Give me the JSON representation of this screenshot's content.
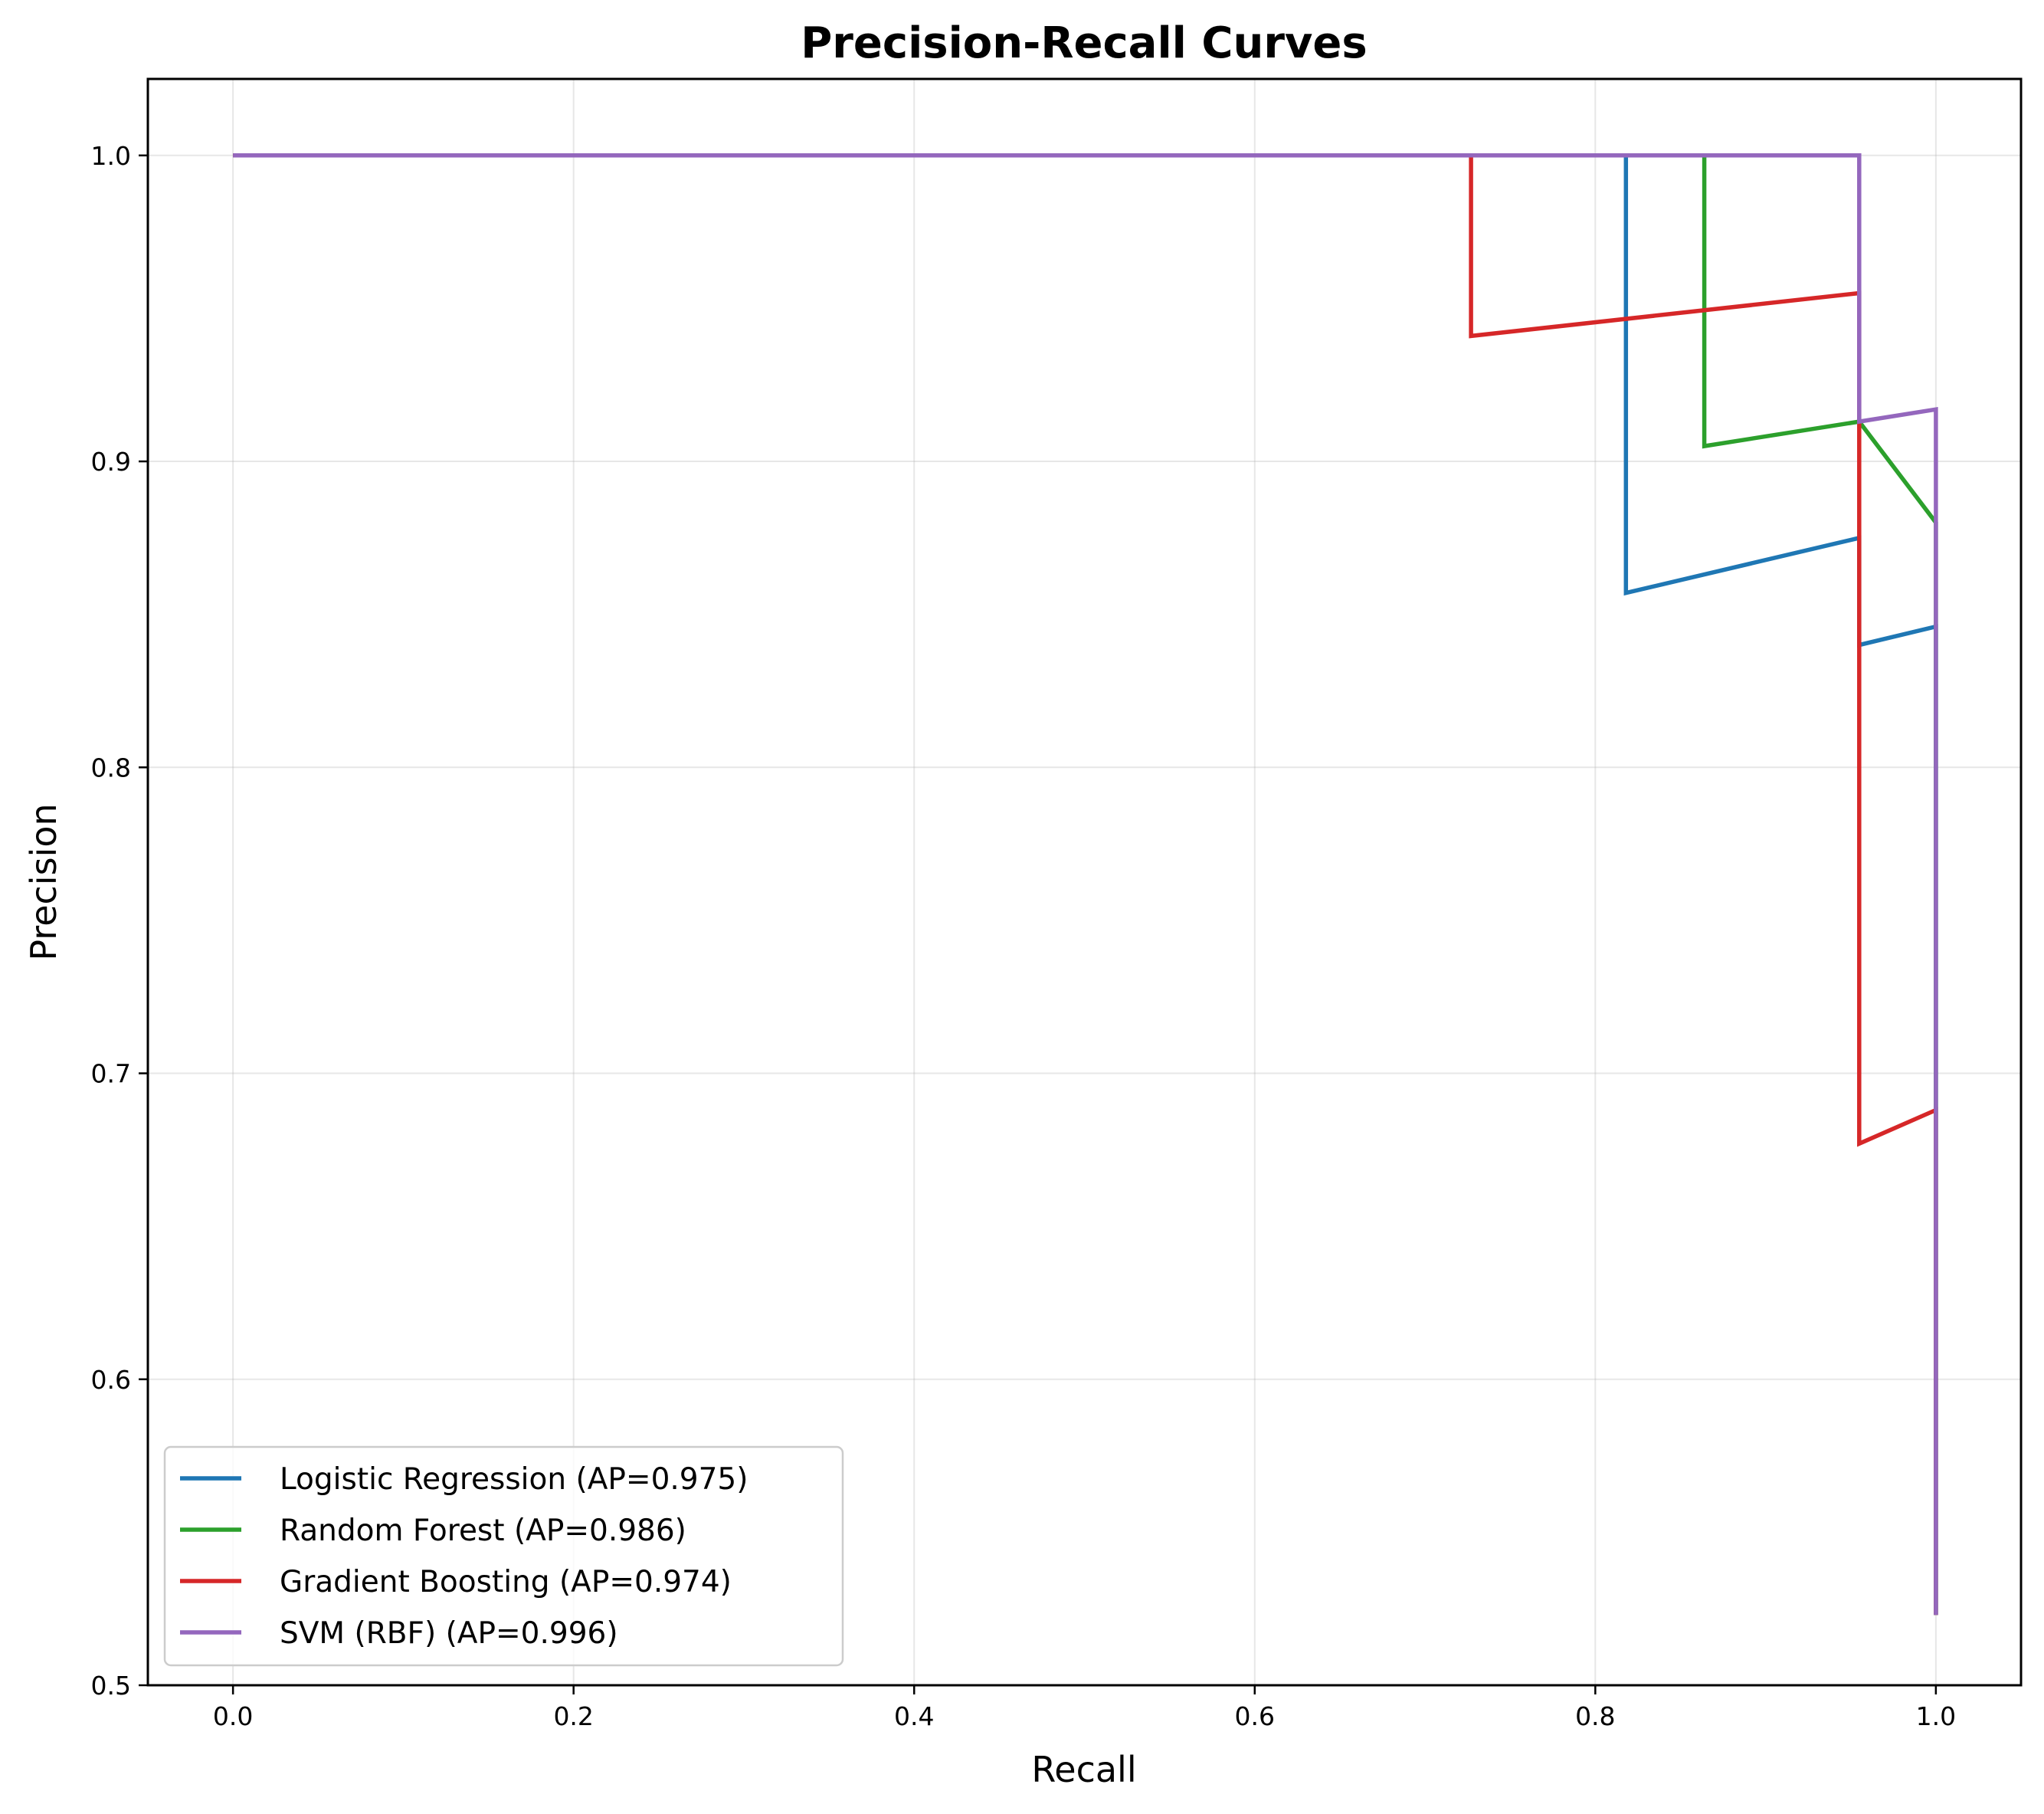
{
  "chart_data": {
    "type": "line",
    "title": "Precision-Recall Curves",
    "xlabel": "Recall",
    "ylabel": "Precision",
    "xlim": [
      -0.05,
      1.05
    ],
    "ylim": [
      0.5,
      1.025
    ],
    "xticks": [
      0.0,
      0.2,
      0.4,
      0.6,
      0.8,
      1.0
    ],
    "xtick_labels": [
      "0.0",
      "0.2",
      "0.4",
      "0.6",
      "0.8",
      "1.0"
    ],
    "yticks": [
      0.5,
      0.6,
      0.7,
      0.8,
      0.9,
      1.0
    ],
    "ytick_labels": [
      "0.5",
      "0.6",
      "0.7",
      "0.8",
      "0.9",
      "1.0"
    ],
    "grid": true,
    "legend_position": "lower-left",
    "series": [
      {
        "name": "Logistic Regression (AP=0.975)",
        "color": "#1f77b4",
        "x": [
          0.0,
          0.818,
          0.818,
          0.955,
          0.955,
          1.0,
          1.0
        ],
        "y": [
          1.0,
          1.0,
          0.857,
          0.875,
          0.84,
          0.846,
          0.523
        ]
      },
      {
        "name": "Random Forest (AP=0.986)",
        "color": "#2ca02c",
        "x": [
          0.0,
          0.864,
          0.864,
          0.955,
          1.0,
          1.0
        ],
        "y": [
          1.0,
          1.0,
          0.905,
          0.913,
          0.88,
          0.523
        ]
      },
      {
        "name": "Gradient Boosting (AP=0.974)",
        "color": "#d62728",
        "x": [
          0.0,
          0.727,
          0.727,
          0.955,
          0.955,
          1.0,
          1.0
        ],
        "y": [
          1.0,
          1.0,
          0.941,
          0.955,
          0.677,
          0.688,
          0.523
        ]
      },
      {
        "name": "SVM (RBF) (AP=0.996)",
        "color": "#9467bd",
        "x": [
          0.0,
          0.955,
          0.955,
          1.0,
          1.0
        ],
        "y": [
          1.0,
          1.0,
          0.913,
          0.917,
          0.523
        ]
      }
    ]
  }
}
